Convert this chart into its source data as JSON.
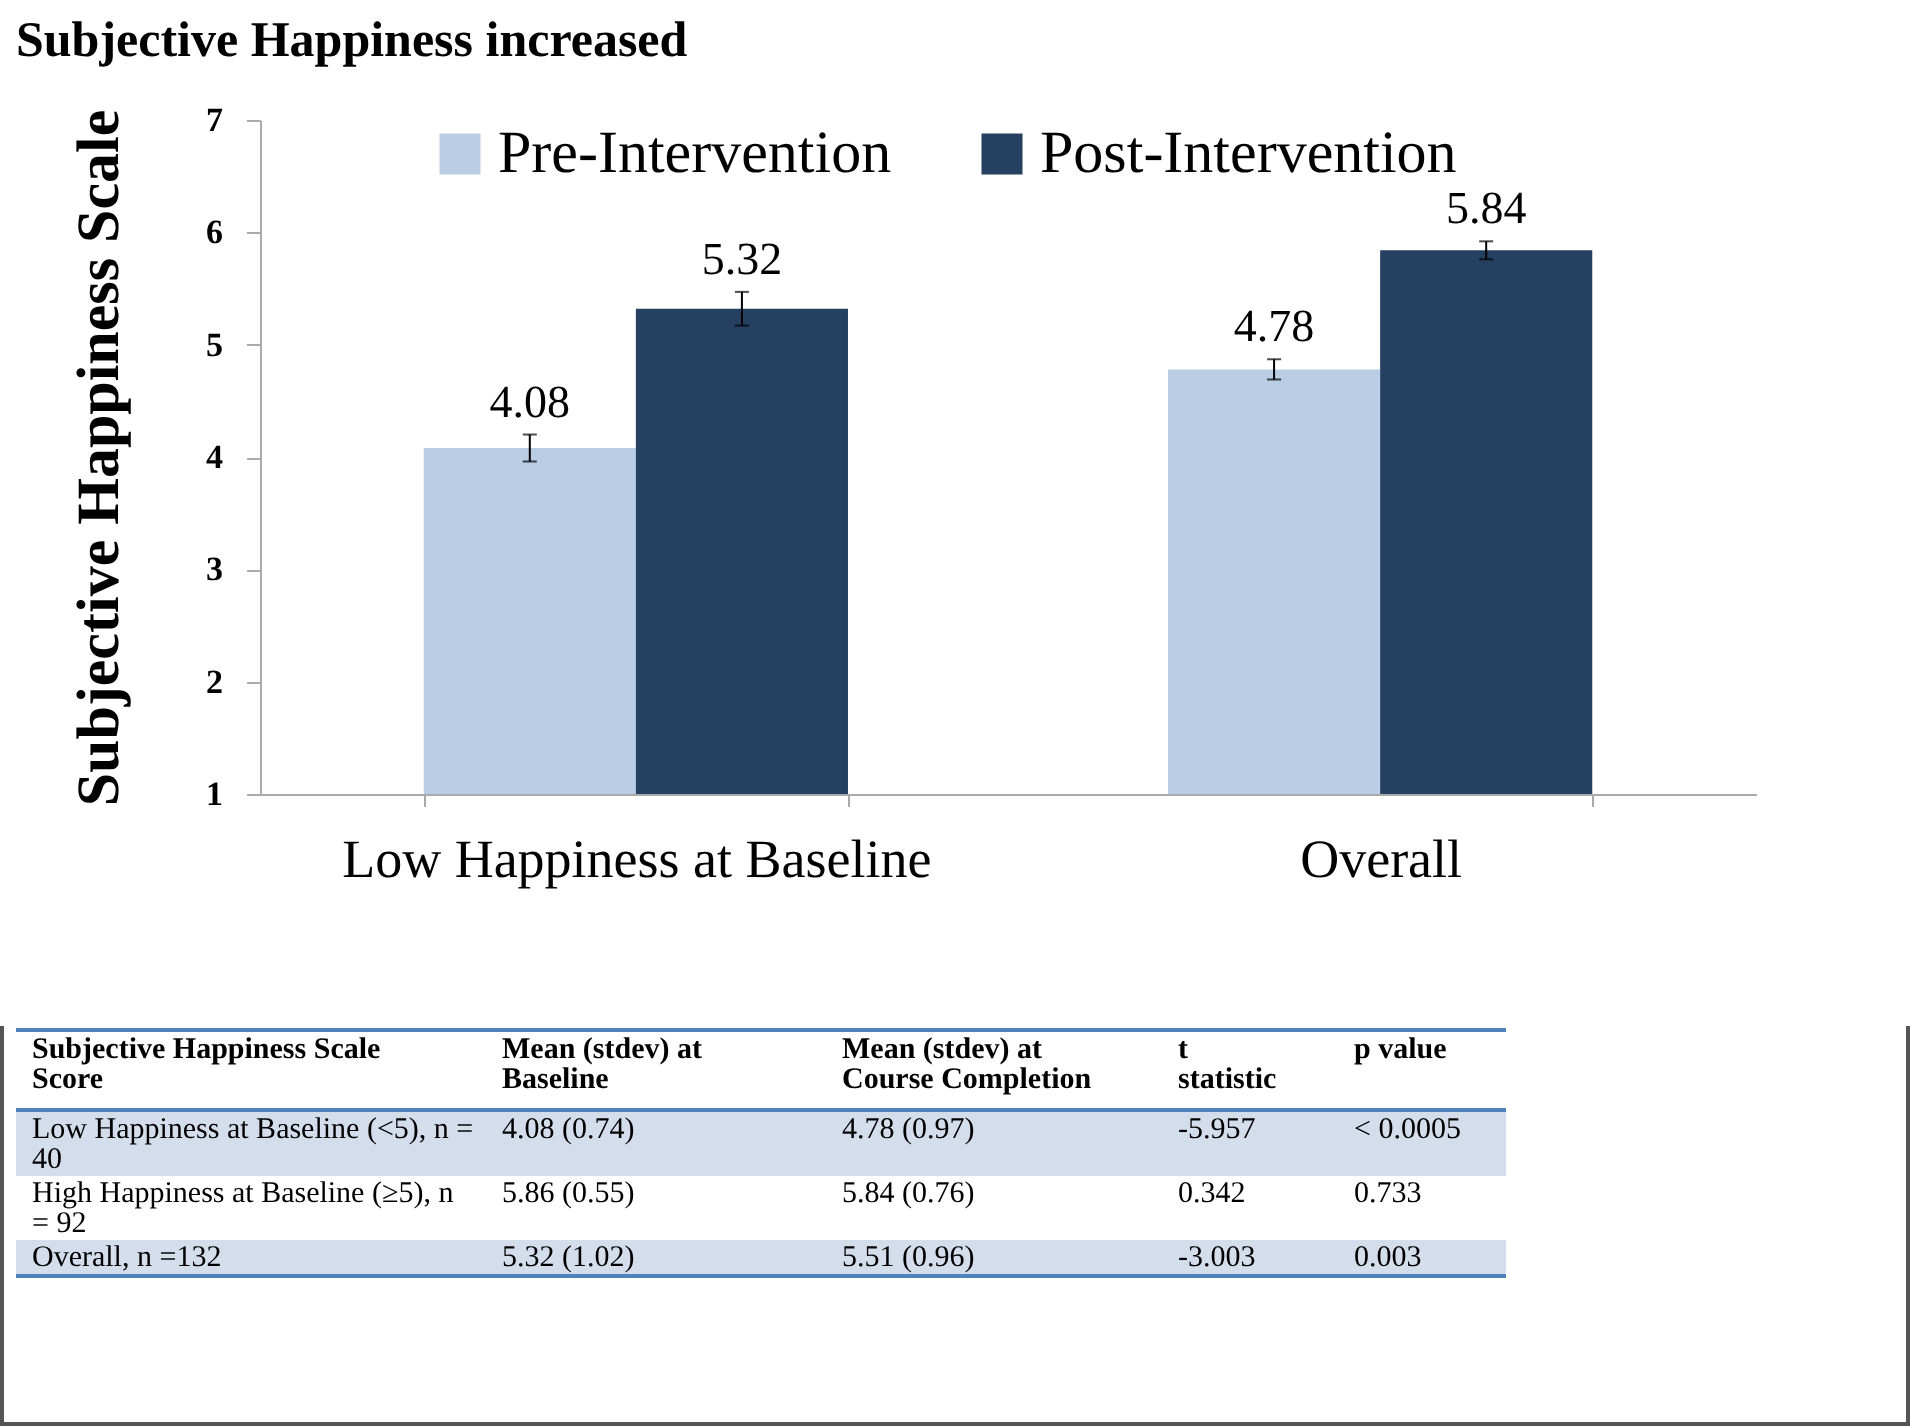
{
  "chart_data": [
    {
      "type": "bar",
      "title": "Subjective Happiness increased",
      "ylabel": "Subjective Happiness Scale",
      "categories": [
        "Low Happiness at Baseline",
        "Overall"
      ],
      "series": [
        {
          "name": "Pre-Intervention",
          "color": "#b9cde5",
          "values": [
            4.08,
            4.78
          ],
          "errors": [
            0.12,
            0.09
          ]
        },
        {
          "name": "Post-Intervention",
          "color": "#254061",
          "values": [
            5.32,
            5.84
          ],
          "errors": [
            0.15,
            0.08
          ]
        }
      ],
      "ylim": [
        1,
        7
      ],
      "yticks": [
        1,
        2,
        3,
        4,
        5,
        6,
        7
      ],
      "grid": false,
      "legend": "top",
      "data_labels": true
    },
    {
      "type": "other",
      "annotations": [
        "Subjective Happiness Scale Score",
        "Mean (stdev) at Baseline",
        "Mean (stdev) at Course Completion",
        "t statistic",
        "p value",
        "Low Happiness at Baseline (<5), n = 40",
        "4.08 (0.74)",
        "4.78 (0.97)",
        "-5.957",
        "< 0.0005",
        "High Happiness at Baseline (≥5), n = 92",
        "5.86 (0.55)",
        "5.84 (0.76)",
        "0.342",
        "0.733",
        "Overall, n =132",
        "5.32 (1.02)",
        "5.51 (0.96)",
        "-3.003",
        "0.003"
      ]
    }
  ]
}
